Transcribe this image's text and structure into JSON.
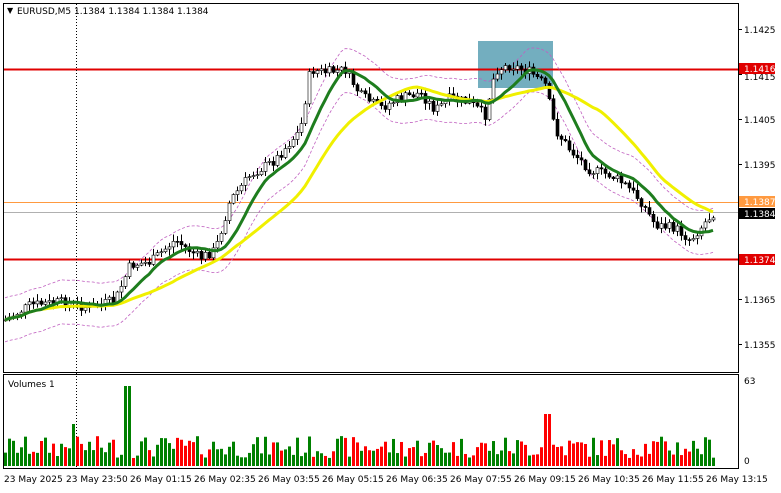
{
  "header": {
    "symbol_line": "EURUSD,M5  1.1384  1.1384  1.1384  1.1384",
    "volumes_label": "Volumes 1"
  },
  "levels": {
    "resistance": "1.1416",
    "sell_level": "1.1387",
    "current_price": "1.1384",
    "support": "1.1374"
  },
  "price_axis": [
    "1.1425",
    "1.1415",
    "1.1405",
    "1.1395",
    "1.1365",
    "1.1355"
  ],
  "volume_axis": [
    "63",
    "0"
  ],
  "time_axis": [
    "23 May 2025",
    "23 May 23:50",
    "26 May 01:15",
    "26 May 02:35",
    "26 May 03:55",
    "26 May 05:15",
    "26 May 06:35",
    "26 May 07:55",
    "26 May 09:15",
    "26 May 10:35",
    "26 May 11:55",
    "26 May 13:15"
  ],
  "colors": {
    "bull": "#008000",
    "bear": "#ff0000",
    "candle": "#000000",
    "ma_fast": "#1e7d1e",
    "ma_slow": "#f0f000",
    "bands": "#c060c0",
    "resistance_line": "#e00000",
    "sell_line": "#ff9a40",
    "highlight": "#5aa0b4"
  },
  "chart_data": {
    "type": "candlestick",
    "symbol": "EURUSD",
    "timeframe": "M5",
    "ylim": [
      1.13515,
      1.14315
    ],
    "horizontal_levels": [
      1.1416,
      1.1387,
      1.1374
    ],
    "current_price": 1.1384,
    "volume_max": 63
  }
}
